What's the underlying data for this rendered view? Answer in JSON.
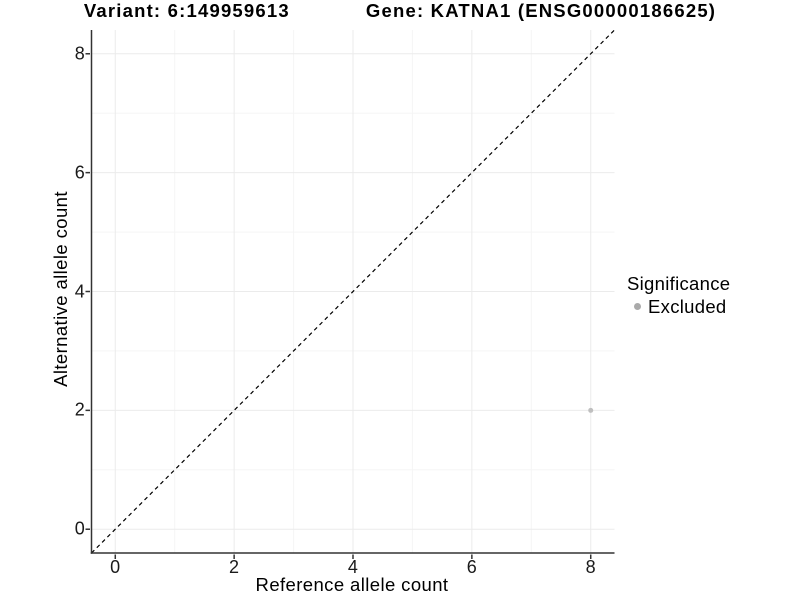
{
  "header": {
    "variant_title": "Variant: 6:149959613",
    "gene_title": "Gene: KATNA1 (ENSG00000186625)"
  },
  "axes": {
    "x_label": "Reference allele count",
    "y_label": "Alternative allele count"
  },
  "legend": {
    "title": "Significance",
    "items": [
      {
        "label": "Excluded",
        "color": "#aaaaaa"
      }
    ]
  },
  "chart_data": {
    "type": "scatter",
    "title": "Variant: 6:149959613    Gene: KATNA1 (ENSG00000186625)",
    "xlabel": "Reference allele count",
    "ylabel": "Alternative allele count",
    "xlim": [
      -0.4,
      8.4
    ],
    "ylim": [
      -0.4,
      8.4
    ],
    "x_ticks": [
      0,
      2,
      4,
      6,
      8
    ],
    "y_ticks": [
      0,
      2,
      4,
      6,
      8
    ],
    "x_minor_ticks": [
      1,
      3,
      5,
      7
    ],
    "y_minor_ticks": [
      1,
      3,
      5,
      7
    ],
    "grid": true,
    "legend_position": "right",
    "series": [
      {
        "name": "Excluded",
        "color": "#bfbfbf",
        "point_radius": 2.5,
        "points": [
          {
            "x": 8,
            "y": 2
          }
        ]
      }
    ],
    "reference_line": {
      "type": "identity-diagonal",
      "style": "dashed",
      "color": "#000000"
    }
  },
  "colors": {
    "background": "#ffffff",
    "grid_major": "#ebebeb",
    "grid_minor": "#f5f5f5",
    "axis_line": "#333333",
    "tick_mark": "#333333"
  }
}
